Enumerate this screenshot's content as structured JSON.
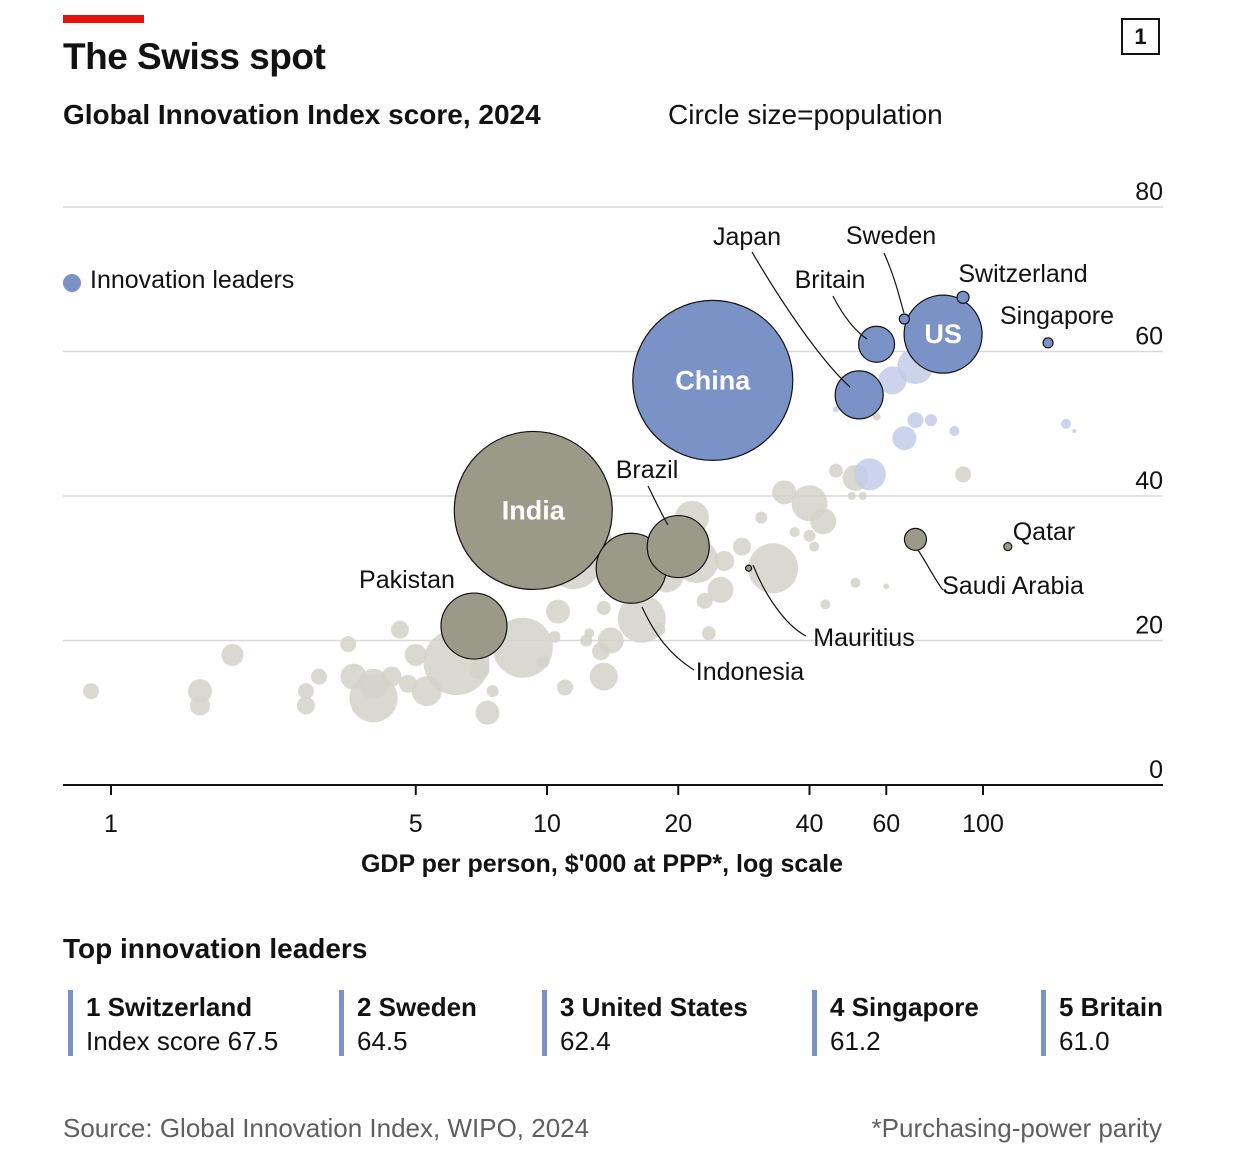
{
  "header": {
    "title": "The Swiss spot",
    "badge": "1",
    "subtitle": "Global Innovation Index score, 2024",
    "size_note": "Circle size=population"
  },
  "legend": {
    "label": "Innovation leaders"
  },
  "colors": {
    "leader": "#7b92c6",
    "leader_faint": "#c2cde6",
    "other": "#9b9987",
    "other_faint": "#d4d2c9",
    "grid": "#d9d9d9",
    "accent": "#e3120b"
  },
  "chart_data": {
    "type": "scatter",
    "xlabel": "GDP per person, $'000 at PPP*, log scale",
    "ylabel": "",
    "xscale": "log",
    "xlim": [
      0.8,
      400
    ],
    "ylim": [
      0,
      80
    ],
    "xticks": [
      1,
      5,
      10,
      20,
      40,
      60,
      100
    ],
    "yticks": [
      0,
      20,
      40,
      60,
      80
    ],
    "grid": "horizontal",
    "size_encodes": "population",
    "labelled_points": [
      {
        "name": "China",
        "x": 24,
        "y": 56,
        "r": 80,
        "group": "leader",
        "label_inside": true
      },
      {
        "name": "US",
        "x": 81,
        "y": 62.4,
        "r": 39,
        "group": "leader",
        "label_inside": true
      },
      {
        "name": "India",
        "x": 9.3,
        "y": 38,
        "r": 79,
        "group": "other",
        "label_inside": true
      },
      {
        "name": "Japan",
        "x": 52,
        "y": 54,
        "r": 24,
        "group": "leader"
      },
      {
        "name": "Britain",
        "x": 57,
        "y": 61,
        "r": 18,
        "group": "leader"
      },
      {
        "name": "Sweden",
        "x": 66,
        "y": 64.5,
        "r": 5,
        "group": "leader"
      },
      {
        "name": "Switzerland",
        "x": 90,
        "y": 67.5,
        "r": 6,
        "group": "leader"
      },
      {
        "name": "Singapore",
        "x": 141,
        "y": 61.2,
        "r": 5,
        "group": "leader"
      },
      {
        "name": "Brazil",
        "x": 20,
        "y": 33,
        "r": 31,
        "group": "other"
      },
      {
        "name": "Indonesia",
        "x": 15.6,
        "y": 30,
        "r": 35,
        "group": "other"
      },
      {
        "name": "Pakistan",
        "x": 6.8,
        "y": 22,
        "r": 33,
        "group": "other"
      },
      {
        "name": "Saudi Arabia",
        "x": 70,
        "y": 34,
        "r": 11,
        "group": "other"
      },
      {
        "name": "Qatar",
        "x": 114,
        "y": 33,
        "r": 4,
        "group": "other"
      },
      {
        "name": "Mauritius",
        "x": 29,
        "y": 30,
        "r": 3,
        "group": "other"
      }
    ],
    "other_points": [
      {
        "x": 0.9,
        "y": 13,
        "r": 8,
        "group": "other"
      },
      {
        "x": 1.9,
        "y": 18,
        "r": 11,
        "group": "other"
      },
      {
        "x": 1.6,
        "y": 13,
        "r": 12,
        "group": "other"
      },
      {
        "x": 1.6,
        "y": 11,
        "r": 10,
        "group": "other"
      },
      {
        "x": 2.8,
        "y": 11,
        "r": 9,
        "group": "other"
      },
      {
        "x": 2.8,
        "y": 13,
        "r": 8,
        "group": "other"
      },
      {
        "x": 3.0,
        "y": 15,
        "r": 8,
        "group": "other"
      },
      {
        "x": 3.5,
        "y": 19.5,
        "r": 8,
        "group": "other"
      },
      {
        "x": 3.6,
        "y": 15,
        "r": 13,
        "group": "other"
      },
      {
        "x": 4.0,
        "y": 12,
        "r": 24,
        "group": "other"
      },
      {
        "x": 4.0,
        "y": 14,
        "r": 15,
        "group": "other"
      },
      {
        "x": 4.4,
        "y": 15,
        "r": 10,
        "group": "other"
      },
      {
        "x": 4.6,
        "y": 21.5,
        "r": 9,
        "group": "other"
      },
      {
        "x": 4.8,
        "y": 14,
        "r": 9,
        "group": "other"
      },
      {
        "x": 5.0,
        "y": 18,
        "r": 11,
        "group": "other"
      },
      {
        "x": 5.3,
        "y": 13,
        "r": 15,
        "group": "other"
      },
      {
        "x": 6.2,
        "y": 17,
        "r": 33,
        "group": "other"
      },
      {
        "x": 7.3,
        "y": 10,
        "r": 12,
        "group": "other"
      },
      {
        "x": 7.5,
        "y": 13,
        "r": 6,
        "group": "other"
      },
      {
        "x": 7.0,
        "y": 16,
        "r": 10,
        "group": "other"
      },
      {
        "x": 8.8,
        "y": 19,
        "r": 30,
        "group": "other"
      },
      {
        "x": 9.8,
        "y": 17,
        "r": 6,
        "group": "other"
      },
      {
        "x": 10.6,
        "y": 24,
        "r": 12,
        "group": "other"
      },
      {
        "x": 10.4,
        "y": 20.5,
        "r": 6,
        "group": "other"
      },
      {
        "x": 11.0,
        "y": 13.5,
        "r": 8,
        "group": "other"
      },
      {
        "x": 11.5,
        "y": 31,
        "r": 28,
        "group": "other"
      },
      {
        "x": 12.5,
        "y": 34,
        "r": 22,
        "group": "other"
      },
      {
        "x": 12.3,
        "y": 20,
        "r": 6,
        "group": "other"
      },
      {
        "x": 12.5,
        "y": 21,
        "r": 5,
        "group": "other"
      },
      {
        "x": 13.5,
        "y": 15,
        "r": 14,
        "group": "other"
      },
      {
        "x": 13.3,
        "y": 18.5,
        "r": 9,
        "group": "other"
      },
      {
        "x": 13.5,
        "y": 24.5,
        "r": 7,
        "group": "other"
      },
      {
        "x": 14.0,
        "y": 20,
        "r": 13,
        "group": "other"
      },
      {
        "x": 13.0,
        "y": 31,
        "r": 10,
        "group": "other"
      },
      {
        "x": 16.5,
        "y": 23,
        "r": 24,
        "group": "other"
      },
      {
        "x": 16.0,
        "y": 27,
        "r": 11,
        "group": "other"
      },
      {
        "x": 18.8,
        "y": 29,
        "r": 17,
        "group": "other"
      },
      {
        "x": 18.0,
        "y": 21.5,
        "r": 7,
        "group": "other"
      },
      {
        "x": 17.8,
        "y": 33,
        "r": 10,
        "group": "other"
      },
      {
        "x": 21.5,
        "y": 37,
        "r": 17,
        "group": "other"
      },
      {
        "x": 23,
        "y": 25.5,
        "r": 8,
        "group": "other"
      },
      {
        "x": 22,
        "y": 31,
        "r": 22,
        "group": "other"
      },
      {
        "x": 23.5,
        "y": 21,
        "r": 7,
        "group": "other"
      },
      {
        "x": 25,
        "y": 27,
        "r": 13,
        "group": "other"
      },
      {
        "x": 25.5,
        "y": 31,
        "r": 10,
        "group": "other"
      },
      {
        "x": 28,
        "y": 33,
        "r": 9,
        "group": "other"
      },
      {
        "x": 33,
        "y": 30,
        "r": 25,
        "group": "other"
      },
      {
        "x": 31,
        "y": 37,
        "r": 6,
        "group": "other"
      },
      {
        "x": 35,
        "y": 40.5,
        "r": 12,
        "group": "other"
      },
      {
        "x": 40,
        "y": 39,
        "r": 18,
        "group": "other"
      },
      {
        "x": 43,
        "y": 36.5,
        "r": 13,
        "group": "other"
      },
      {
        "x": 37,
        "y": 35,
        "r": 5,
        "group": "other"
      },
      {
        "x": 40,
        "y": 34.5,
        "r": 6,
        "group": "other"
      },
      {
        "x": 41,
        "y": 33,
        "r": 5,
        "group": "other"
      },
      {
        "x": 43.5,
        "y": 25,
        "r": 5,
        "group": "other"
      },
      {
        "x": 46,
        "y": 43.5,
        "r": 7,
        "group": "other"
      },
      {
        "x": 51,
        "y": 42.5,
        "r": 13,
        "group": "other"
      },
      {
        "x": 51,
        "y": 28,
        "r": 5,
        "group": "other"
      },
      {
        "x": 50,
        "y": 40,
        "r": 4,
        "group": "other"
      },
      {
        "x": 53,
        "y": 40,
        "r": 4,
        "group": "other"
      },
      {
        "x": 90,
        "y": 43,
        "r": 8,
        "group": "other"
      },
      {
        "x": 60,
        "y": 27.5,
        "r": 3,
        "group": "other"
      },
      {
        "x": 57,
        "y": 51,
        "r": 4,
        "group": "other"
      },
      {
        "x": 55,
        "y": 43,
        "r": 16,
        "group": "leader"
      },
      {
        "x": 62,
        "y": 56,
        "r": 14,
        "group": "leader"
      },
      {
        "x": 70,
        "y": 58,
        "r": 18,
        "group": "leader"
      },
      {
        "x": 66,
        "y": 48,
        "r": 12,
        "group": "leader"
      },
      {
        "x": 70,
        "y": 50.5,
        "r": 8,
        "group": "leader"
      },
      {
        "x": 76,
        "y": 50.5,
        "r": 6,
        "group": "leader"
      },
      {
        "x": 86,
        "y": 49,
        "r": 5,
        "group": "leader"
      },
      {
        "x": 77,
        "y": 58,
        "r": 5,
        "group": "leader"
      },
      {
        "x": 46,
        "y": 52,
        "r": 3,
        "group": "leader"
      },
      {
        "x": 155,
        "y": 50,
        "r": 5,
        "group": "leader"
      },
      {
        "x": 162,
        "y": 49,
        "r": 2,
        "group": "leader"
      }
    ],
    "annotation_labels": [
      "Japan",
      "Sweden",
      "Britain",
      "Switzerland",
      "Singapore",
      "Brazil",
      "Pakistan",
      "Indonesia",
      "Mauritius",
      "Qatar",
      "Saudi Arabia"
    ]
  },
  "leaders_panel": {
    "title": "Top innovation leaders",
    "items": [
      {
        "name": "1 Switzerland",
        "score": "Index score 67.5"
      },
      {
        "name": "2 Sweden",
        "score": "64.5"
      },
      {
        "name": "3 United States",
        "score": "62.4"
      },
      {
        "name": "4 Singapore",
        "score": "61.2"
      },
      {
        "name": "5 Britain",
        "score": "61.0"
      }
    ]
  },
  "footer": {
    "source": "Source: Global Innovation Index, WIPO, 2024",
    "footnote": "*Purchasing-power parity"
  }
}
